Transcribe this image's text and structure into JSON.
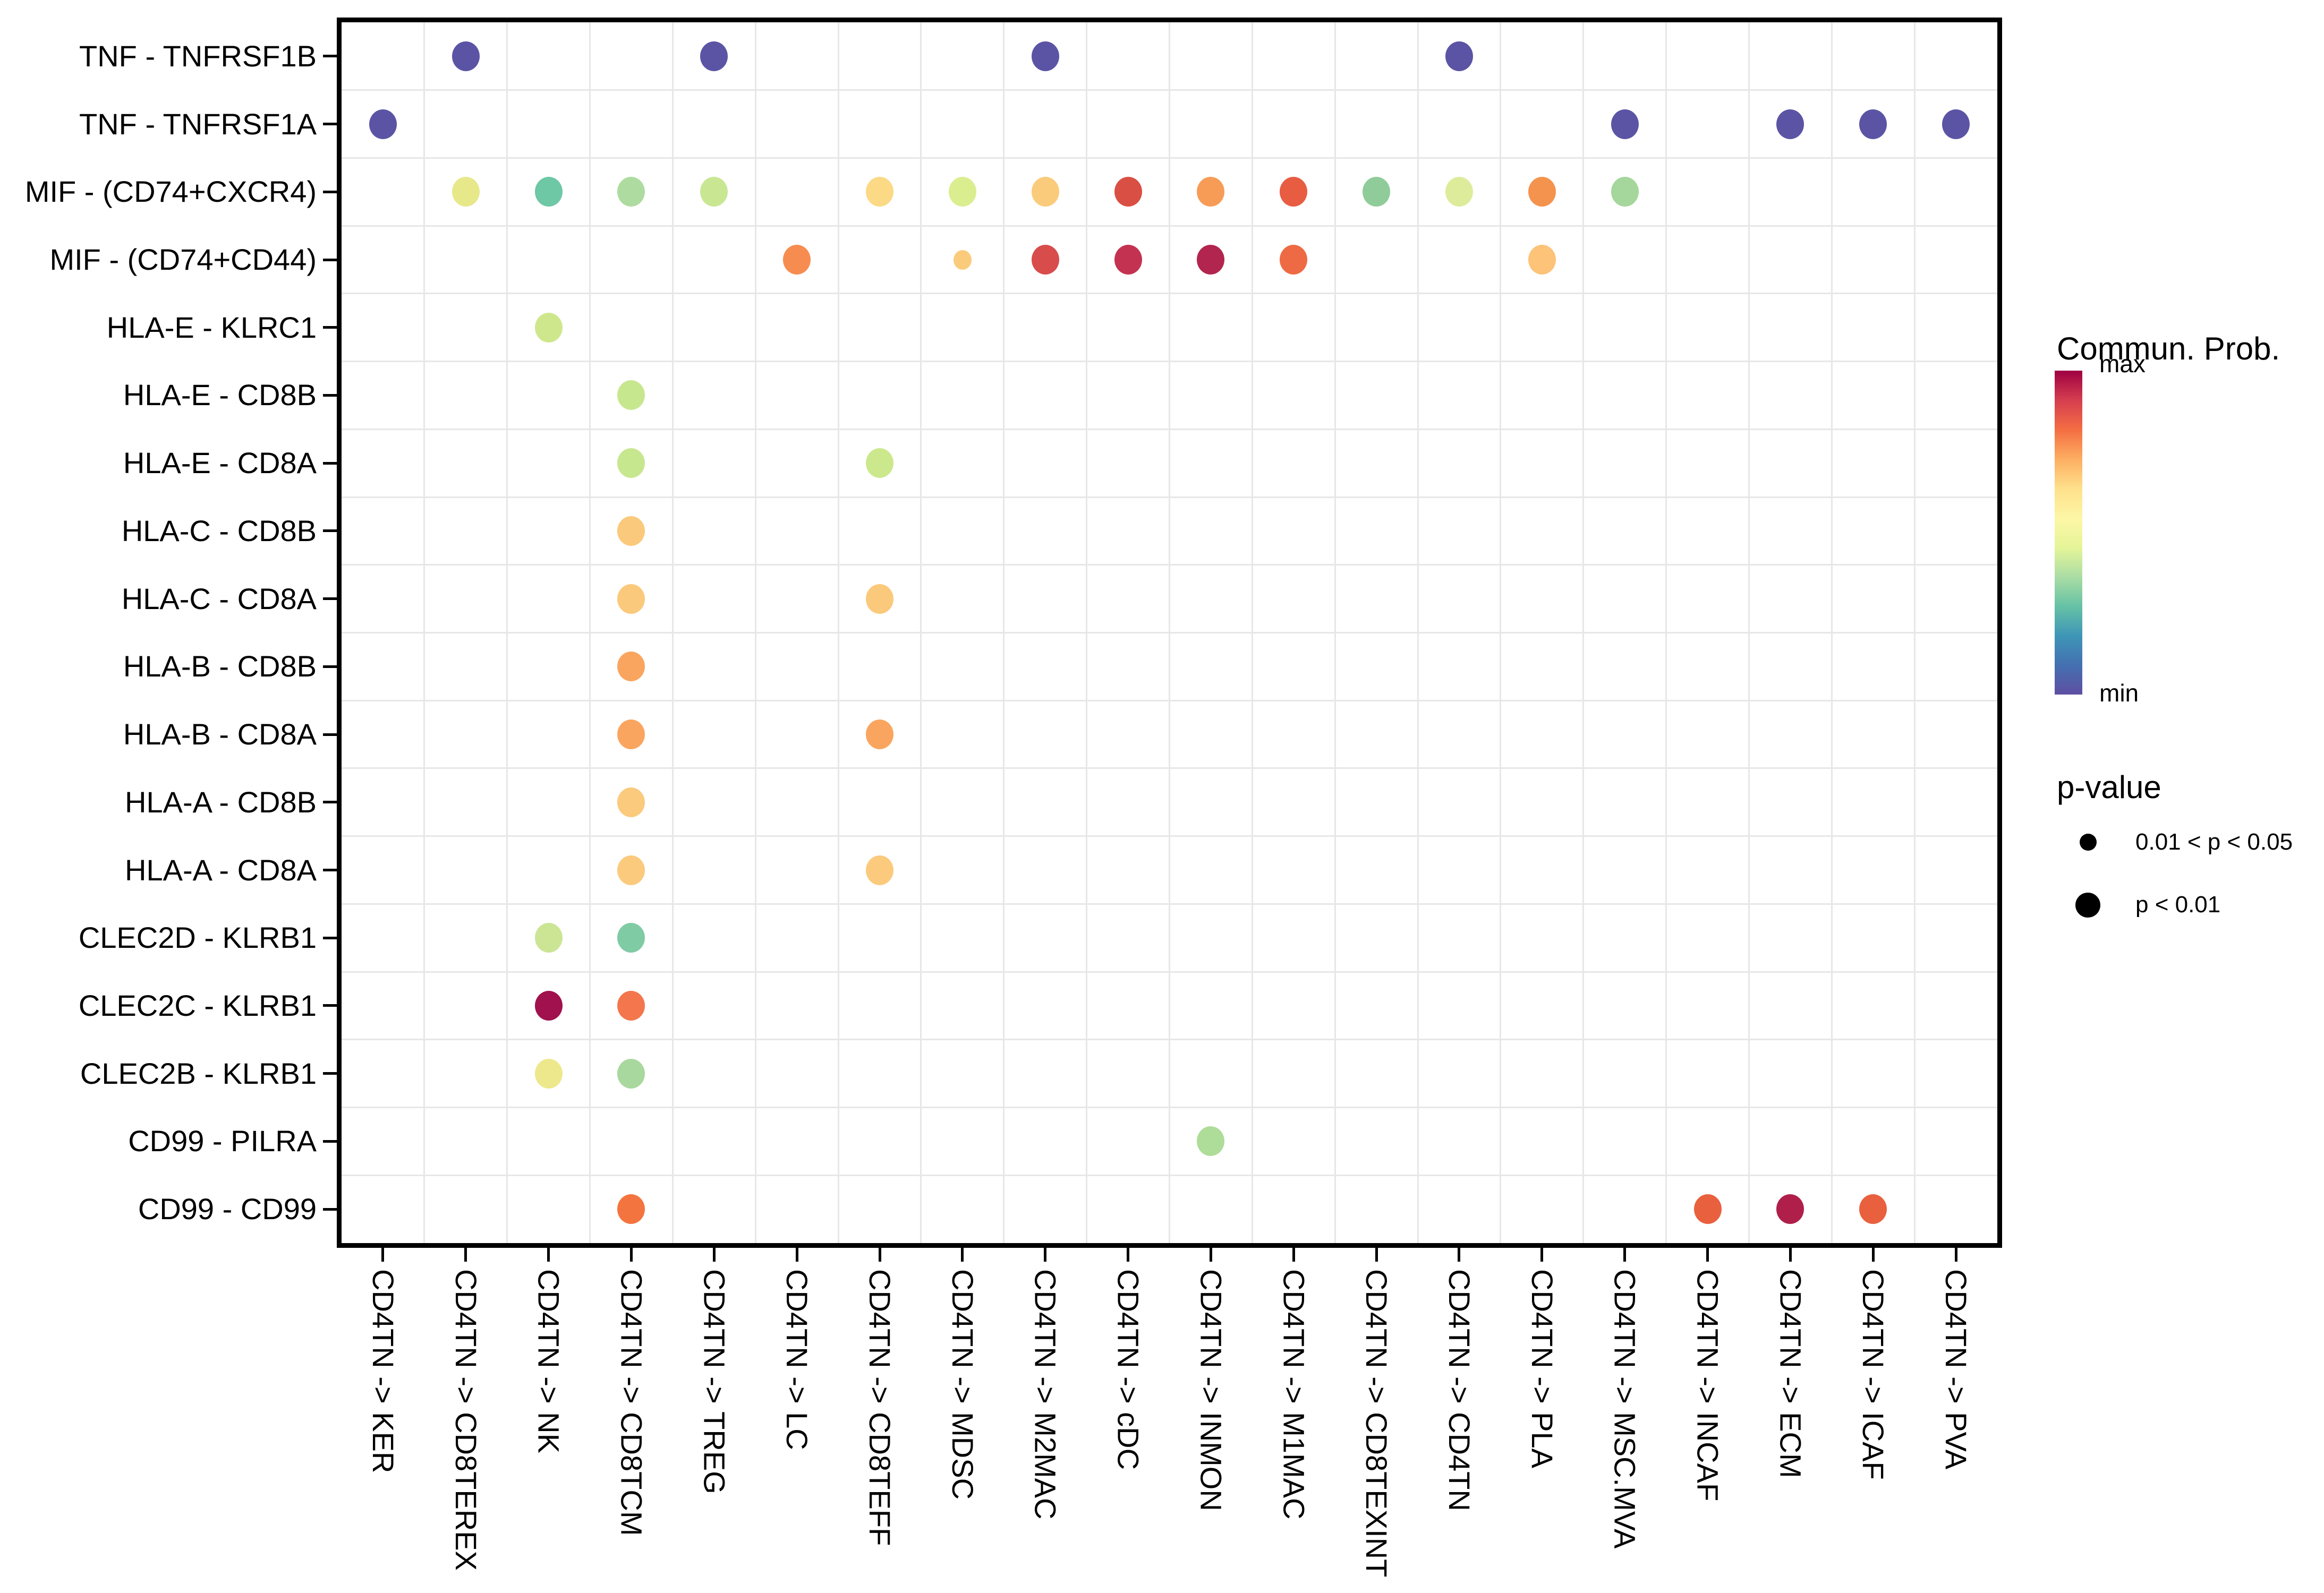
{
  "chart_data": {
    "type": "scatter",
    "subtype": "bubble-dot-plot",
    "title": "",
    "xlabel": "",
    "ylabel": "",
    "grid": true,
    "x_categories": [
      "CD4TN -> KER",
      "CD4TN -> CD8TEREX",
      "CD4TN -> NK",
      "CD4TN -> CD8TCM",
      "CD4TN -> TREG",
      "CD4TN -> LC",
      "CD4TN -> CD8TEFF",
      "CD4TN -> MDSC",
      "CD4TN -> M2MAC",
      "CD4TN -> cDC",
      "CD4TN -> INMON",
      "CD4TN -> M1MAC",
      "CD4TN -> CD8TEXINT",
      "CD4TN -> CD4TN",
      "CD4TN -> PLA",
      "CD4TN -> MSC.MVA",
      "CD4TN -> INCAF",
      "CD4TN -> ECM",
      "CD4TN -> ICAF",
      "CD4TN -> PVA"
    ],
    "y_categories": [
      "TNF - TNFRSF1B",
      "TNF - TNFRSF1A",
      "MIF - (CD74+CXCR4)",
      "MIF - (CD74+CD44)",
      "HLA-E - KLRC1",
      "HLA-E - CD8B",
      "HLA-E - CD8A",
      "HLA-C - CD8B",
      "HLA-C - CD8A",
      "HLA-B - CD8B",
      "HLA-B - CD8A",
      "HLA-A - CD8B",
      "HLA-A - CD8A",
      "CLEC2D - KLRB1",
      "CLEC2C - KLRB1",
      "CLEC2B - KLRB1",
      "CD99 - PILRA",
      "CD99 - CD99"
    ],
    "points": [
      {
        "row": 0,
        "col": 1,
        "color": "#5B54A5",
        "p": "p < 0.01"
      },
      {
        "row": 0,
        "col": 4,
        "color": "#5B54A5",
        "p": "p < 0.01"
      },
      {
        "row": 0,
        "col": 8,
        "color": "#5B54A5",
        "p": "p < 0.01"
      },
      {
        "row": 0,
        "col": 13,
        "color": "#5B54A5",
        "p": "p < 0.01"
      },
      {
        "row": 1,
        "col": 0,
        "color": "#5B54A5",
        "p": "p < 0.01"
      },
      {
        "row": 1,
        "col": 15,
        "color": "#5B54A5",
        "p": "p < 0.01"
      },
      {
        "row": 1,
        "col": 17,
        "color": "#5B54A5",
        "p": "p < 0.01"
      },
      {
        "row": 1,
        "col": 18,
        "color": "#5B54A5",
        "p": "p < 0.01"
      },
      {
        "row": 1,
        "col": 19,
        "color": "#5B54A5",
        "p": "p < 0.01"
      },
      {
        "row": 2,
        "col": 1,
        "color": "#E7E88A",
        "p": "p < 0.01"
      },
      {
        "row": 2,
        "col": 2,
        "color": "#6EC7A5",
        "p": "p < 0.01"
      },
      {
        "row": 2,
        "col": 3,
        "color": "#AEDCA0",
        "p": "p < 0.01"
      },
      {
        "row": 2,
        "col": 4,
        "color": "#C9E793",
        "p": "p < 0.01"
      },
      {
        "row": 2,
        "col": 6,
        "color": "#FBD985",
        "p": "p < 0.01"
      },
      {
        "row": 2,
        "col": 7,
        "color": "#DAEE90",
        "p": "p < 0.01"
      },
      {
        "row": 2,
        "col": 8,
        "color": "#FBCB7C",
        "p": "p < 0.01"
      },
      {
        "row": 2,
        "col": 9,
        "color": "#D94F43",
        "p": "p < 0.01"
      },
      {
        "row": 2,
        "col": 10,
        "color": "#F69C57",
        "p": "p < 0.01"
      },
      {
        "row": 2,
        "col": 11,
        "color": "#E85C42",
        "p": "p < 0.01"
      },
      {
        "row": 2,
        "col": 12,
        "color": "#8FCC99",
        "p": "p < 0.01"
      },
      {
        "row": 2,
        "col": 13,
        "color": "#DCEC9A",
        "p": "p < 0.01"
      },
      {
        "row": 2,
        "col": 14,
        "color": "#F4934E",
        "p": "p < 0.01"
      },
      {
        "row": 2,
        "col": 15,
        "color": "#A5D69C",
        "p": "p < 0.01"
      },
      {
        "row": 3,
        "col": 5,
        "color": "#F78C51",
        "p": "p < 0.01"
      },
      {
        "row": 3,
        "col": 7,
        "color": "#FBCB7C",
        "p": "0.01 < p < 0.05"
      },
      {
        "row": 3,
        "col": 8,
        "color": "#D84C4C",
        "p": "p < 0.01"
      },
      {
        "row": 3,
        "col": 9,
        "color": "#C43251",
        "p": "p < 0.01"
      },
      {
        "row": 3,
        "col": 10,
        "color": "#B2254E",
        "p": "p < 0.01"
      },
      {
        "row": 3,
        "col": 11,
        "color": "#EE6A44",
        "p": "p < 0.01"
      },
      {
        "row": 3,
        "col": 14,
        "color": "#FCC379",
        "p": "p < 0.01"
      },
      {
        "row": 4,
        "col": 2,
        "color": "#CFE78C",
        "p": "p < 0.01"
      },
      {
        "row": 5,
        "col": 3,
        "color": "#C7E78F",
        "p": "p < 0.01"
      },
      {
        "row": 6,
        "col": 3,
        "color": "#C7E78F",
        "p": "p < 0.01"
      },
      {
        "row": 6,
        "col": 6,
        "color": "#CCE88C",
        "p": "p < 0.01"
      },
      {
        "row": 7,
        "col": 3,
        "color": "#FBC97B",
        "p": "p < 0.01"
      },
      {
        "row": 8,
        "col": 3,
        "color": "#FBC97B",
        "p": "p < 0.01"
      },
      {
        "row": 8,
        "col": 6,
        "color": "#FBC97B",
        "p": "p < 0.01"
      },
      {
        "row": 9,
        "col": 3,
        "color": "#FAA55F",
        "p": "p < 0.01"
      },
      {
        "row": 10,
        "col": 3,
        "color": "#FAA55F",
        "p": "p < 0.01"
      },
      {
        "row": 10,
        "col": 6,
        "color": "#FAA55F",
        "p": "p < 0.01"
      },
      {
        "row": 11,
        "col": 3,
        "color": "#FBCA7D",
        "p": "p < 0.01"
      },
      {
        "row": 12,
        "col": 3,
        "color": "#FBCA7D",
        "p": "p < 0.01"
      },
      {
        "row": 12,
        "col": 6,
        "color": "#FBCA7D",
        "p": "p < 0.01"
      },
      {
        "row": 13,
        "col": 2,
        "color": "#CBE595",
        "p": "p < 0.01"
      },
      {
        "row": 13,
        "col": 3,
        "color": "#7FCBA4",
        "p": "p < 0.01"
      },
      {
        "row": 14,
        "col": 2,
        "color": "#A0114D",
        "p": "p < 0.01"
      },
      {
        "row": 14,
        "col": 3,
        "color": "#F3764D",
        "p": "p < 0.01"
      },
      {
        "row": 15,
        "col": 2,
        "color": "#EDE88B",
        "p": "p < 0.01"
      },
      {
        "row": 15,
        "col": 3,
        "color": "#A8D89E",
        "p": "p < 0.01"
      },
      {
        "row": 16,
        "col": 10,
        "color": "#AEDC99",
        "p": "p < 0.01"
      },
      {
        "row": 17,
        "col": 3,
        "color": "#F4743F",
        "p": "p < 0.01"
      },
      {
        "row": 17,
        "col": 16,
        "color": "#E9603F",
        "p": "p < 0.01"
      },
      {
        "row": 17,
        "col": 17,
        "color": "#B01F4A",
        "p": "p < 0.01"
      },
      {
        "row": 17,
        "col": 18,
        "color": "#E9603F",
        "p": "p < 0.01"
      }
    ],
    "color_legend": {
      "title": "Commun. Prob.",
      "max_label": "max",
      "min_label": "min",
      "gradient_top_to_bottom": [
        "#9E0142",
        "#D53E4F",
        "#F46D43",
        "#FDAE61",
        "#FEE08B",
        "#FDF6A6",
        "#E6F598",
        "#ABDDA4",
        "#66C2A5",
        "#3E96B7",
        "#4470B1",
        "#5E4FA2"
      ]
    },
    "size_legend": {
      "title": "p-value",
      "items": [
        {
          "label": "0.01 < p < 0.05",
          "size": "small"
        },
        {
          "label": "p < 0.01",
          "size": "large"
        }
      ]
    },
    "layout": {
      "legend_position": "right",
      "x_labels_rotated_90": true,
      "axis_color": "#000000",
      "gridline_color": "#E7E7E7"
    }
  }
}
